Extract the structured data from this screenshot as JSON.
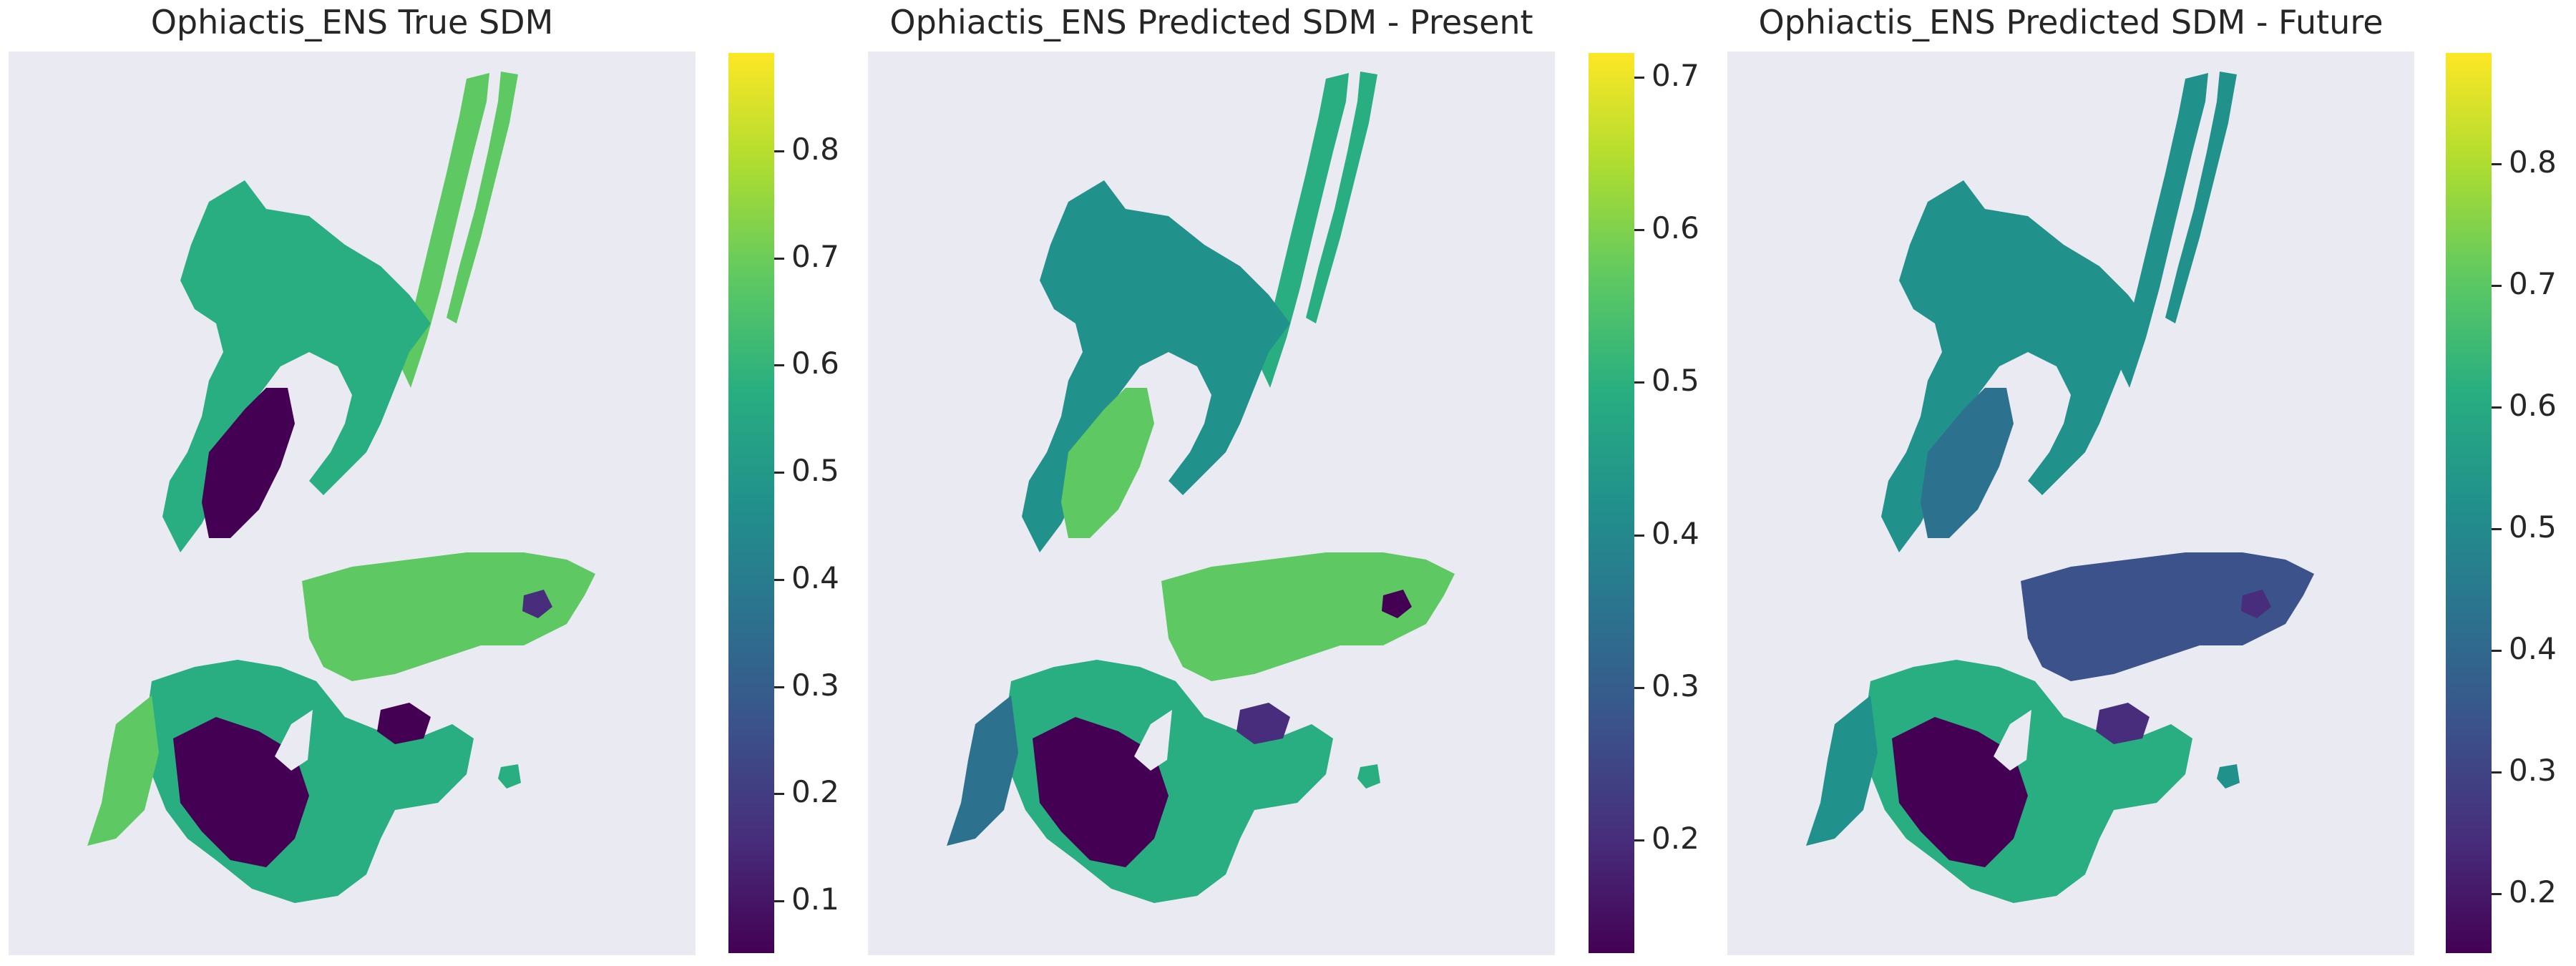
{
  "chart_data": [
    {
      "type": "heatmap",
      "title": "Ophiactis_ENS True SDM",
      "colormap": "viridis",
      "colorbar": {
        "min": 0.05,
        "max": 0.89,
        "ticks": [
          0.1,
          0.2,
          0.3,
          0.4,
          0.5,
          0.6,
          0.7,
          0.8
        ]
      },
      "grid": false,
      "axes_visible": false
    },
    {
      "type": "heatmap",
      "title": "Ophiactis_ENS Predicted SDM - Present",
      "colormap": "viridis",
      "colorbar": {
        "min": 0.125,
        "max": 0.715,
        "ticks": [
          0.2,
          0.3,
          0.4,
          0.5,
          0.6,
          0.7
        ]
      },
      "grid": false,
      "axes_visible": false
    },
    {
      "type": "heatmap",
      "title": "Ophiactis_ENS Predicted SDM - Future",
      "colormap": "viridis",
      "colorbar": {
        "min": 0.15,
        "max": 0.89,
        "ticks": [
          0.2,
          0.3,
          0.4,
          0.5,
          0.6,
          0.7,
          0.8
        ]
      },
      "grid": false,
      "axes_visible": false
    }
  ],
  "colors": {
    "viridis_0": "#440154",
    "viridis_25": "#3b528b",
    "viridis_50": "#21918c",
    "viridis_75": "#5ec962",
    "viridis_100": "#fde725",
    "axes_background": "#eaeaf2"
  }
}
